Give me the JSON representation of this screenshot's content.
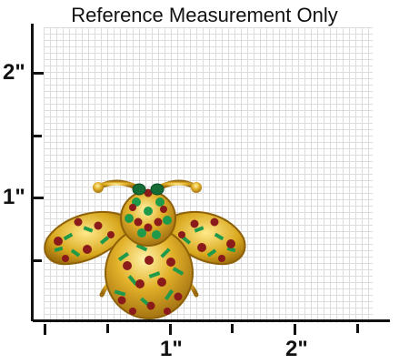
{
  "title": "Reference Measurement Only",
  "y_axis_labels": [
    "2\"",
    "1\""
  ],
  "x_axis_labels": [
    "1\"",
    "2\""
  ],
  "image_subject": "bee-brooch",
  "colors": {
    "gold": "#d9a81e",
    "enamel_green": "#1f9a4a",
    "garnet_red": "#8b1a1a"
  }
}
